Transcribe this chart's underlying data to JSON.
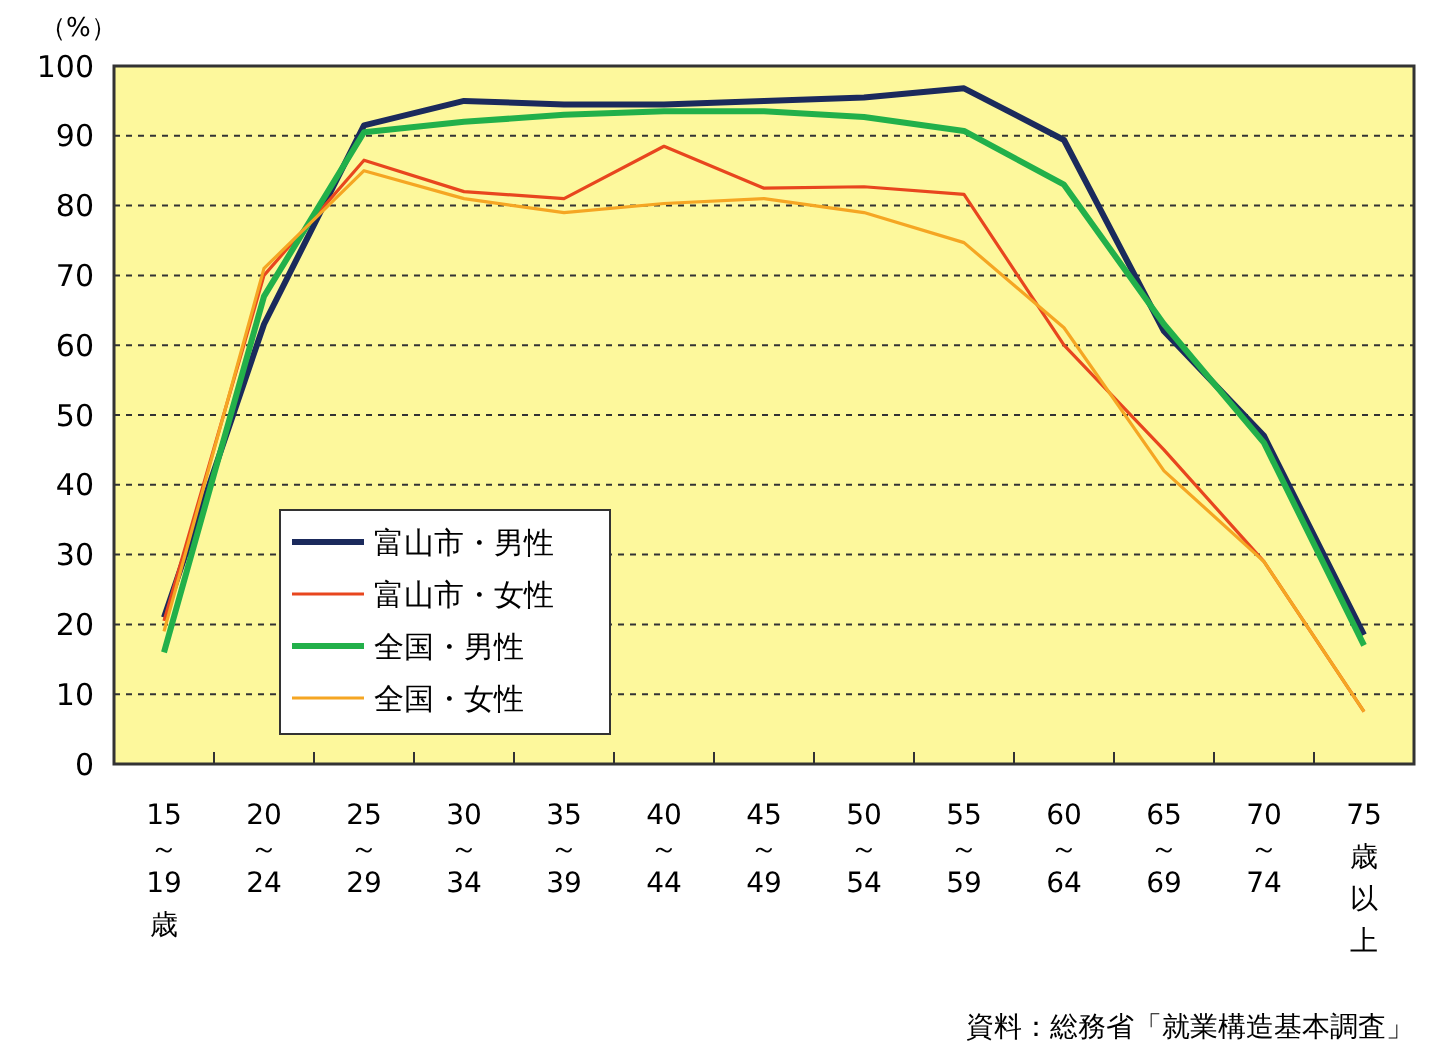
{
  "chart_data": {
    "type": "line",
    "ylabel": "（%）",
    "categories": [
      "15～19歳",
      "20～24",
      "25～29",
      "30～34",
      "35～39",
      "40～44",
      "45～49",
      "50～54",
      "55～59",
      "60～64",
      "65～69",
      "70～74",
      "75歳以上"
    ],
    "series": [
      {
        "name": "富山市・男性",
        "color": "#1b2a5c",
        "values": [
          21,
          63,
          91.5,
          95,
          94.5,
          94.5,
          95,
          95.5,
          96.8,
          89.4,
          62,
          47,
          18.5
        ]
      },
      {
        "name": "富山市・女性",
        "color": "#e8461e",
        "values": [
          20.5,
          70,
          86.5,
          82,
          81,
          88.5,
          82.5,
          82.7,
          81.6,
          60,
          45,
          29,
          7.5
        ]
      },
      {
        "name": "全国・男性",
        "color": "#22b04a",
        "values": [
          16,
          67,
          90.5,
          92,
          93,
          93.5,
          93.5,
          92.7,
          90.7,
          83,
          63,
          46,
          17
        ]
      },
      {
        "name": "全国・女性",
        "color": "#f5a623",
        "values": [
          19,
          71,
          85,
          81,
          79,
          80.3,
          81,
          79,
          74.7,
          62.5,
          42,
          29,
          7.5
        ]
      }
    ],
    "ylim": [
      0,
      100
    ],
    "yticks": [
      0,
      10,
      20,
      30,
      40,
      50,
      60,
      70,
      80,
      90,
      100
    ],
    "grid": "y",
    "legend": "left",
    "marker": "none",
    "line_style": "solid",
    "annotations": [
      "資料：総務省「就業構造基本調査」"
    ]
  }
}
